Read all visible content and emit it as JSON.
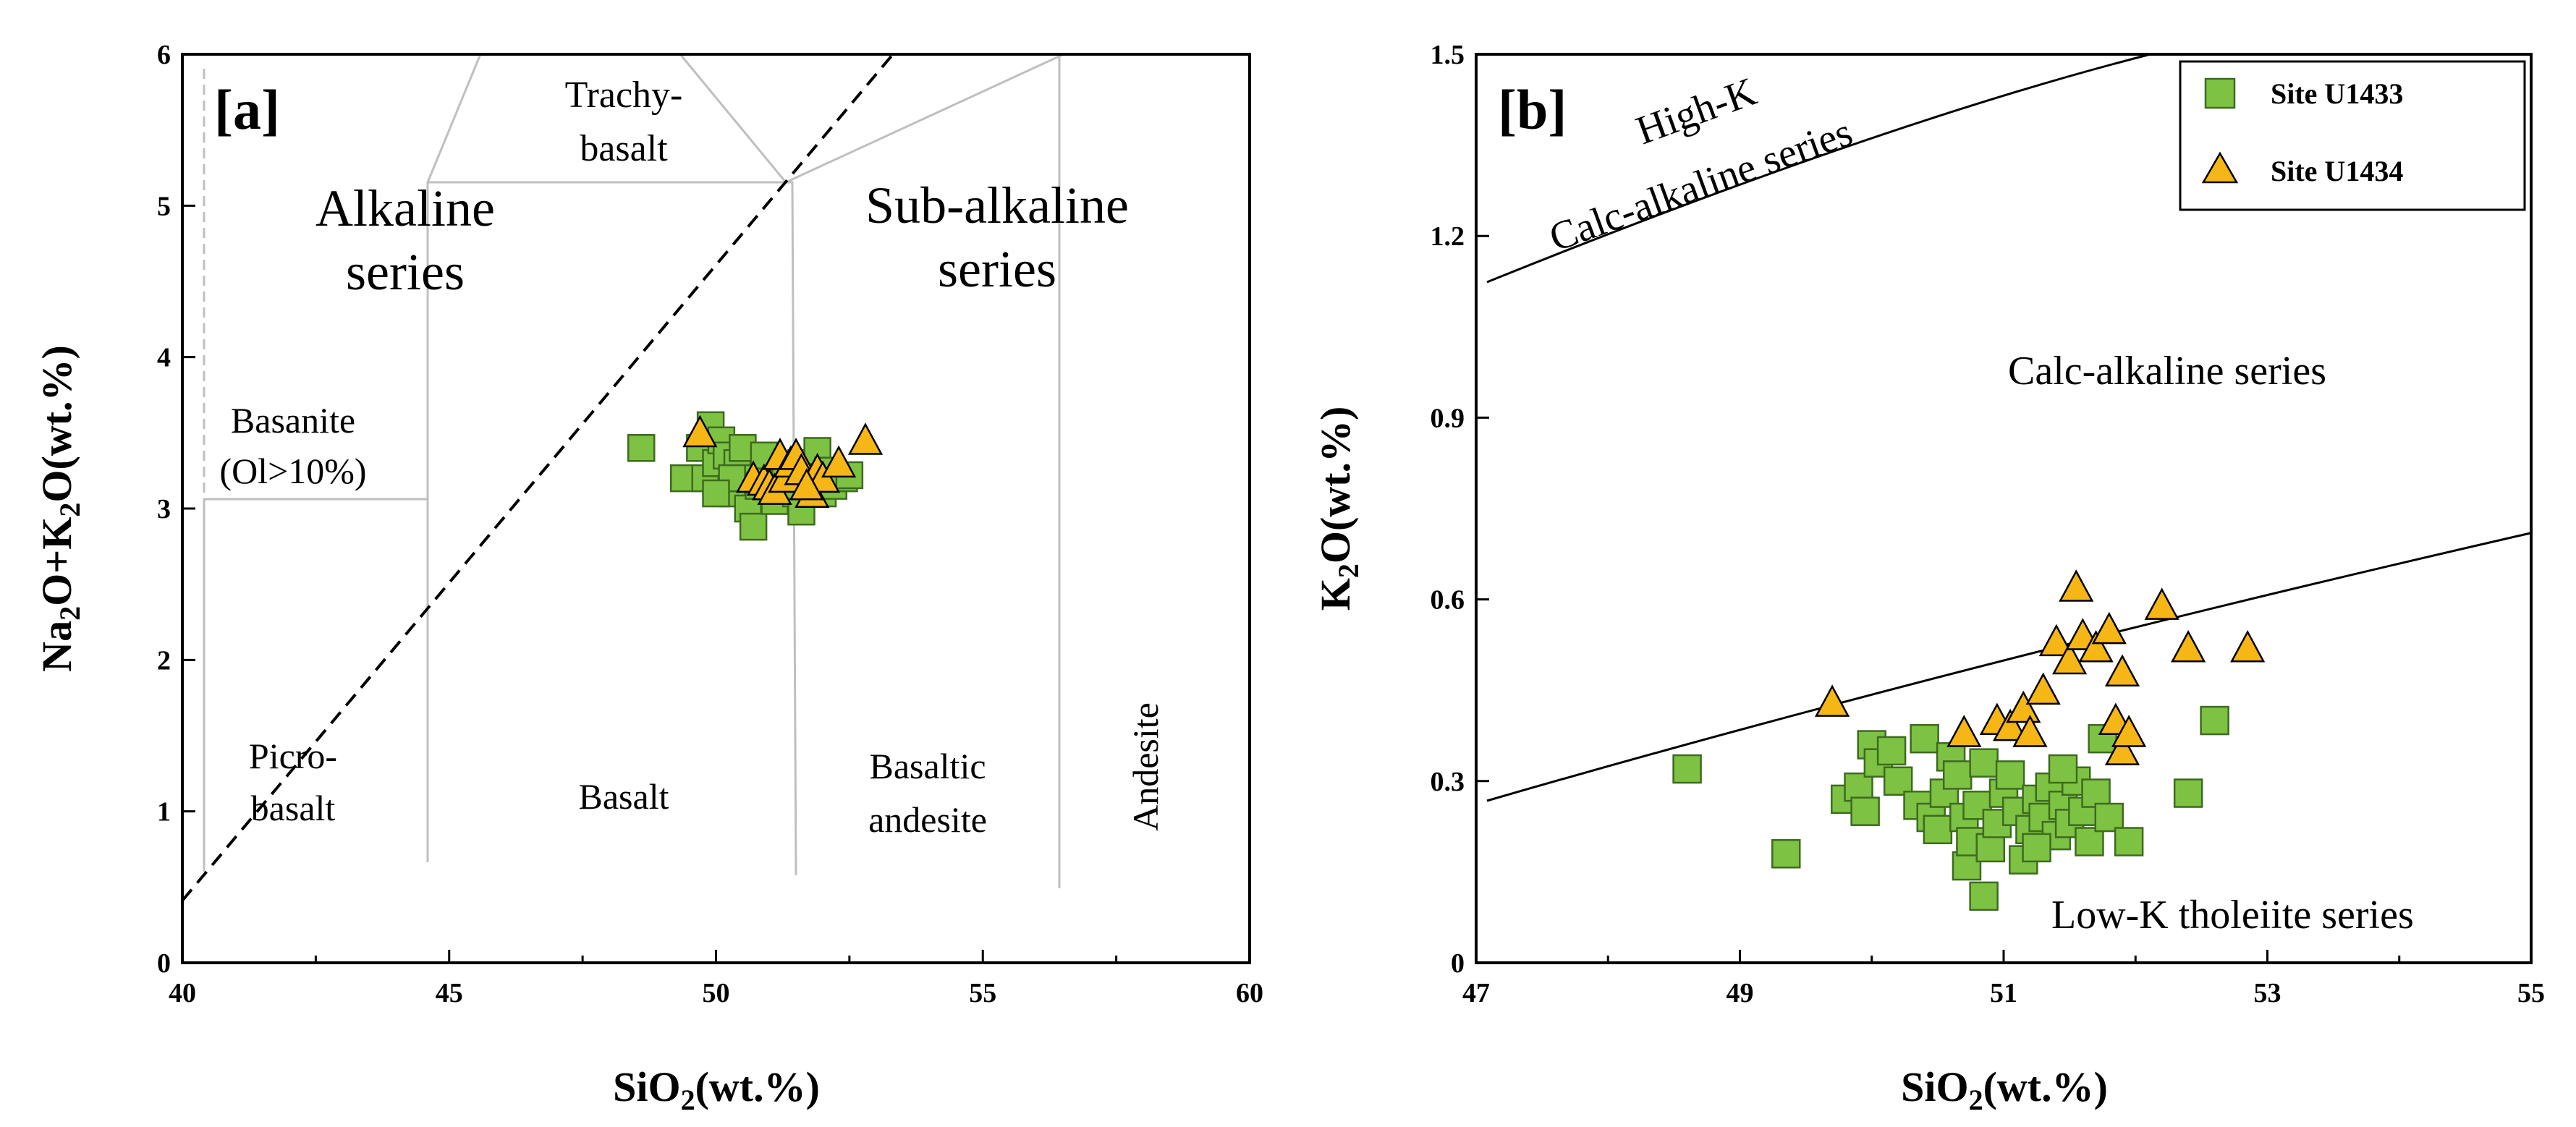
{
  "chart_data": [
    {
      "type": "scatter",
      "panel_label": "[a]",
      "xlabel": {
        "main": "SiO",
        "sub": "2",
        "rest": "(wt.%)"
      },
      "ylabel": {
        "parts": [
          [
            "Na",
            ""
          ],
          [
            "2",
            "sub"
          ],
          [
            "O+K",
            ""
          ],
          [
            "2",
            "sub"
          ],
          [
            "O(wt.%)",
            ""
          ]
        ]
      },
      "xlim": [
        40,
        60
      ],
      "ylim": [
        0,
        6
      ],
      "xticks": [
        "40",
        "45",
        "50",
        "55",
        "60"
      ],
      "yticks": [
        "0",
        "1",
        "2",
        "3",
        "4",
        "5",
        "6"
      ],
      "field_labels": [
        "Trachy-",
        "basalt",
        "Alkaline",
        "series",
        "Sub-alkaline",
        "series",
        "Basanite",
        "(Ol>10%)",
        "Picro-",
        "basalt",
        "Basalt",
        "Basaltic",
        "andesite",
        "Andesite"
      ],
      "series": [
        {
          "name": "Site U1433",
          "marker": "square",
          "color": "#7dc242",
          "points": [
            [
              48.6,
              3.4
            ],
            [
              49.4,
              3.2
            ],
            [
              49.7,
              3.4
            ],
            [
              49.9,
              3.55
            ],
            [
              49.8,
              3.2
            ],
            [
              50.0,
              3.3
            ],
            [
              50.1,
              3.45
            ],
            [
              50.2,
              3.35
            ],
            [
              50.3,
              3.1
            ],
            [
              50.4,
              3.3
            ],
            [
              50.5,
              3.2
            ],
            [
              50.6,
              3.0
            ],
            [
              50.7,
              2.88
            ],
            [
              50.5,
              3.4
            ],
            [
              50.3,
              3.2
            ],
            [
              50.8,
              3.15
            ],
            [
              51.0,
              3.25
            ],
            [
              51.1,
              3.05
            ],
            [
              51.3,
              3.2
            ],
            [
              51.5,
              3.1
            ],
            [
              51.6,
              3.3
            ],
            [
              51.6,
              2.98
            ],
            [
              51.7,
              3.15
            ],
            [
              51.8,
              3.2
            ],
            [
              51.9,
              3.38
            ],
            [
              52.0,
              3.1
            ],
            [
              52.1,
              3.25
            ],
            [
              52.2,
              3.15
            ],
            [
              52.4,
              3.2
            ],
            [
              52.5,
              3.22
            ],
            [
              50.0,
              3.1
            ],
            [
              50.9,
              3.35
            ]
          ]
        },
        {
          "name": "Site U1434",
          "marker": "triangle",
          "color": "#f6b615",
          "points": [
            [
              49.7,
              3.5
            ],
            [
              50.7,
              3.2
            ],
            [
              50.9,
              3.18
            ],
            [
              51.0,
              3.15
            ],
            [
              51.1,
              3.12
            ],
            [
              51.2,
              3.35
            ],
            [
              51.3,
              3.2
            ],
            [
              51.4,
              3.3
            ],
            [
              51.5,
              3.35
            ],
            [
              51.6,
              3.25
            ],
            [
              51.8,
              3.1
            ],
            [
              51.9,
              3.25
            ],
            [
              52.0,
              3.2
            ],
            [
              52.3,
              3.3
            ],
            [
              52.8,
              3.45
            ],
            [
              51.7,
              3.15
            ]
          ]
        }
      ]
    },
    {
      "type": "scatter",
      "panel_label": "[b]",
      "xlabel": {
        "main": "SiO",
        "sub": "2",
        "rest": "(wt.%)"
      },
      "ylabel": {
        "parts": [
          [
            "K",
            ""
          ],
          [
            "2",
            "sub"
          ],
          [
            "O(wt.%)",
            ""
          ]
        ]
      },
      "xlim": [
        47,
        55
      ],
      "ylim": [
        0,
        1.5
      ],
      "xticks": [
        "47",
        "49",
        "51",
        "53",
        "55"
      ],
      "yticks": [
        "0",
        "0.3",
        "0.6",
        "0.9",
        "1.2",
        "1.5"
      ],
      "field_labels": [
        "High-K",
        "Calc-alkaline series",
        "Calc-alkaline series",
        "Low-K tholeiite series"
      ],
      "legend": {
        "position": "top-right",
        "entries": [
          "Site U1433",
          "Site U1434"
        ]
      },
      "series": [
        {
          "name": "Site U1433",
          "marker": "square",
          "color": "#7dc242",
          "points": [
            [
              48.6,
              0.32
            ],
            [
              49.35,
              0.18
            ],
            [
              49.8,
              0.27
            ],
            [
              49.9,
              0.29
            ],
            [
              49.95,
              0.25
            ],
            [
              50.0,
              0.36
            ],
            [
              50.05,
              0.33
            ],
            [
              50.2,
              0.3
            ],
            [
              50.35,
              0.26
            ],
            [
              50.4,
              0.37
            ],
            [
              50.45,
              0.24
            ],
            [
              50.5,
              0.22
            ],
            [
              50.55,
              0.28
            ],
            [
              50.6,
              0.34
            ],
            [
              50.65,
              0.31
            ],
            [
              50.7,
              0.24
            ],
            [
              50.72,
              0.16
            ],
            [
              50.75,
              0.2
            ],
            [
              50.8,
              0.26
            ],
            [
              50.85,
              0.33
            ],
            [
              50.85,
              0.11
            ],
            [
              50.9,
              0.19
            ],
            [
              50.95,
              0.23
            ],
            [
              51.0,
              0.28
            ],
            [
              51.05,
              0.31
            ],
            [
              51.1,
              0.25
            ],
            [
              51.15,
              0.17
            ],
            [
              51.2,
              0.22
            ],
            [
              51.25,
              0.27
            ],
            [
              51.3,
              0.24
            ],
            [
              51.35,
              0.29
            ],
            [
              51.4,
              0.21
            ],
            [
              51.45,
              0.26
            ],
            [
              51.5,
              0.23
            ],
            [
              51.55,
              0.3
            ],
            [
              51.6,
              0.25
            ],
            [
              51.65,
              0.2
            ],
            [
              51.7,
              0.28
            ],
            [
              51.75,
              0.37
            ],
            [
              51.8,
              0.24
            ],
            [
              51.95,
              0.2
            ],
            [
              52.4,
              0.28
            ],
            [
              52.6,
              0.4
            ],
            [
              51.25,
              0.19
            ],
            [
              50.15,
              0.35
            ],
            [
              51.45,
              0.32
            ]
          ]
        },
        {
          "name": "Site U1434",
          "marker": "triangle",
          "color": "#f6b615",
          "points": [
            [
              49.7,
              0.43
            ],
            [
              50.7,
              0.38
            ],
            [
              50.95,
              0.4
            ],
            [
              51.05,
              0.39
            ],
            [
              51.15,
              0.42
            ],
            [
              51.2,
              0.38
            ],
            [
              51.3,
              0.45
            ],
            [
              51.4,
              0.53
            ],
            [
              51.5,
              0.5
            ],
            [
              51.55,
              0.62
            ],
            [
              51.6,
              0.54
            ],
            [
              51.7,
              0.52
            ],
            [
              51.8,
              0.55
            ],
            [
              51.9,
              0.48
            ],
            [
              51.85,
              0.4
            ],
            [
              51.9,
              0.35
            ],
            [
              51.95,
              0.38
            ],
            [
              52.2,
              0.59
            ],
            [
              52.4,
              0.52
            ],
            [
              52.85,
              0.52
            ]
          ]
        }
      ]
    }
  ]
}
